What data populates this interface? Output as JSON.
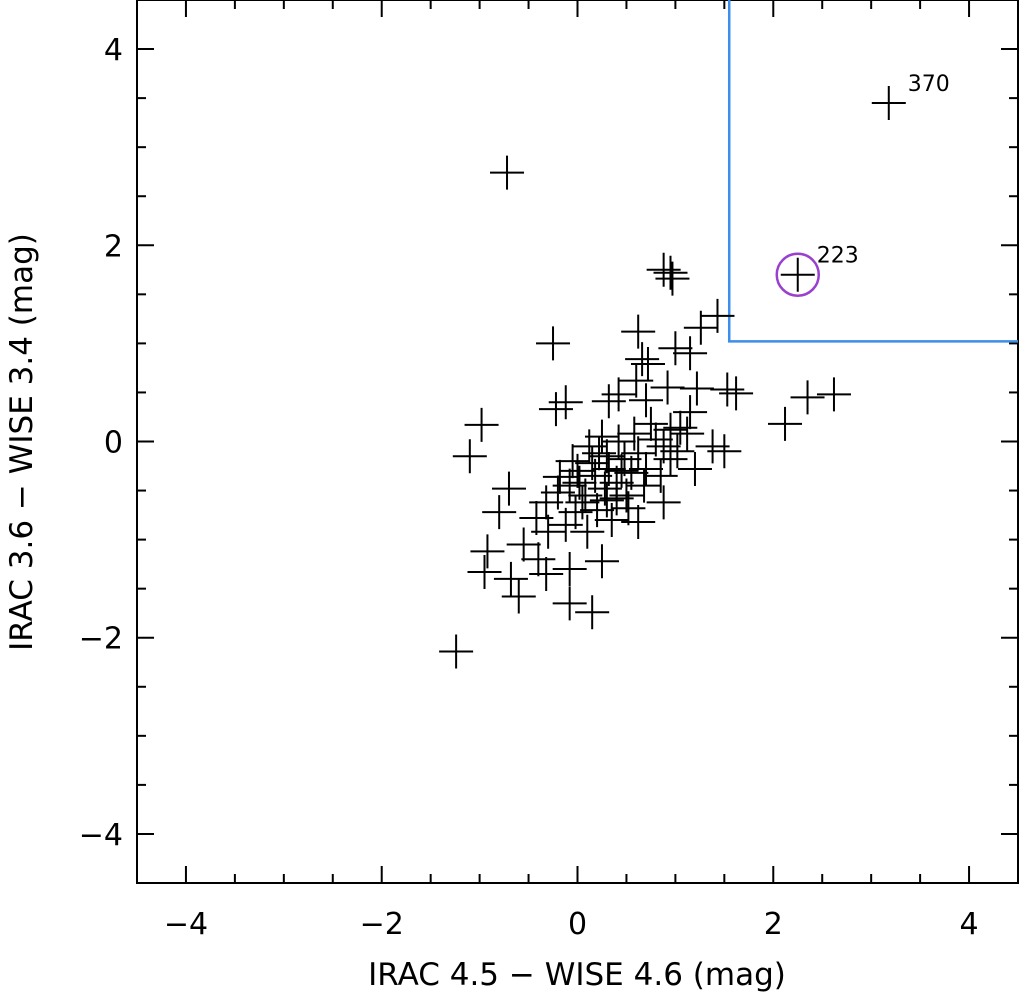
{
  "chart_data": {
    "type": "scatter",
    "xlabel": "IRAC 4.5 − WISE 4.6 (mag)",
    "ylabel": "IRAC 3.6 − WISE 3.4 (mag)",
    "xlim": [
      -4.5,
      4.5
    ],
    "ylim": [
      -4.5,
      4.5
    ],
    "x_ticks": [
      -4,
      -2,
      0,
      2,
      4
    ],
    "x_tick_labels": [
      "−4",
      "−2",
      "0",
      "2",
      "4"
    ],
    "y_ticks": [
      -4,
      -2,
      0,
      2,
      4
    ],
    "y_tick_labels": [
      "−4",
      "−2",
      "0",
      "2",
      "4"
    ],
    "minor_tick_step": 0.5,
    "grid": false,
    "marker": "plus",
    "series": [
      {
        "points": [
          [
            -0.72,
            2.74
          ],
          [
            -1.24,
            -2.14
          ],
          [
            -0.98,
            0.17
          ],
          [
            -1.1,
            -0.15
          ],
          [
            -0.7,
            -0.48
          ],
          [
            -0.8,
            -0.72
          ],
          [
            -0.92,
            -1.12
          ],
          [
            -0.95,
            -1.33
          ],
          [
            -0.6,
            -1.58
          ],
          [
            -0.68,
            -1.4
          ],
          [
            -0.55,
            -1.05
          ],
          [
            -0.4,
            -1.2
          ],
          [
            -0.32,
            -1.35
          ],
          [
            -0.08,
            -1.65
          ],
          [
            0.15,
            -1.74
          ],
          [
            -0.25,
            1.0
          ],
          [
            -0.22,
            0.33
          ],
          [
            -0.12,
            0.4
          ],
          [
            -0.08,
            -1.3
          ],
          [
            0.25,
            -1.22
          ],
          [
            0.88,
            1.75
          ],
          [
            0.95,
            1.72
          ],
          [
            0.97,
            1.66
          ],
          [
            0.62,
            1.12
          ],
          [
            0.66,
            0.84
          ],
          [
            0.72,
            0.79
          ],
          [
            0.6,
            0.62
          ],
          [
            1.0,
            0.95
          ],
          [
            1.15,
            0.9
          ],
          [
            1.26,
            1.16
          ],
          [
            1.43,
            1.28
          ],
          [
            1.53,
            0.53
          ],
          [
            1.62,
            0.49
          ],
          [
            1.22,
            0.54
          ],
          [
            0.92,
            0.55
          ],
          [
            0.7,
            0.42
          ],
          [
            0.42,
            0.48
          ],
          [
            0.32,
            0.41
          ],
          [
            0.75,
            0.18
          ],
          [
            1.05,
            0.14
          ],
          [
            1.15,
            0.3
          ],
          [
            1.38,
            -0.05
          ],
          [
            0.95,
            -0.18
          ],
          [
            1.2,
            -0.28
          ],
          [
            1.5,
            -0.1
          ],
          [
            0.88,
            -0.62
          ],
          [
            0.52,
            -0.68
          ],
          [
            0.62,
            -0.82
          ],
          [
            0.4,
            -0.58
          ],
          [
            0.3,
            -0.15
          ],
          [
            0.12,
            -0.05
          ],
          [
            0.02,
            -0.42
          ],
          [
            -0.18,
            -0.36
          ],
          [
            -0.32,
            -0.62
          ],
          [
            -0.42,
            -0.78
          ],
          [
            -0.3,
            -0.92
          ],
          [
            -0.12,
            -0.85
          ],
          [
            -0.08,
            -0.45
          ],
          [
            0.0,
            -0.3
          ],
          [
            0.08,
            -0.55
          ],
          [
            0.18,
            -0.35
          ],
          [
            0.28,
            -0.48
          ],
          [
            0.32,
            -0.28
          ],
          [
            0.4,
            -0.42
          ],
          [
            0.48,
            -0.18
          ],
          [
            0.55,
            -0.32
          ],
          [
            0.62,
            -0.12
          ],
          [
            0.7,
            -0.28
          ],
          [
            0.8,
            0.02
          ],
          [
            0.88,
            -0.05
          ],
          [
            0.95,
            0.12
          ],
          [
            0.2,
            -0.7
          ],
          [
            0.1,
            -0.92
          ],
          [
            0.35,
            -0.8
          ],
          [
            -0.05,
            -0.2
          ],
          [
            0.22,
            -0.12
          ],
          [
            0.42,
            0.0
          ],
          [
            0.58,
            0.08
          ],
          [
            0.25,
            0.05
          ],
          [
            0.05,
            -0.62
          ],
          [
            -0.2,
            -0.52
          ],
          [
            0.15,
            -0.22
          ],
          [
            0.3,
            -0.6
          ],
          [
            0.45,
            -0.3
          ],
          [
            0.68,
            -0.45
          ],
          [
            0.85,
            -0.35
          ],
          [
            1.02,
            -0.1
          ],
          [
            1.12,
            0.08
          ],
          [
            0.5,
            -0.55
          ],
          [
            -0.02,
            -0.72
          ],
          [
            2.12,
            0.18
          ],
          [
            2.35,
            0.45
          ],
          [
            2.62,
            0.48
          ]
        ]
      }
    ],
    "selection_box": {
      "x_min": 1.55,
      "y_min": 1.02,
      "color": "#3c8fe8"
    },
    "labeled_points": [
      {
        "label": "370",
        "x": 3.18,
        "y": 3.45,
        "circled": false
      },
      {
        "label": "223",
        "x": 2.25,
        "y": 1.7,
        "circled": true,
        "circle_color": "#9a3fce"
      }
    ]
  }
}
